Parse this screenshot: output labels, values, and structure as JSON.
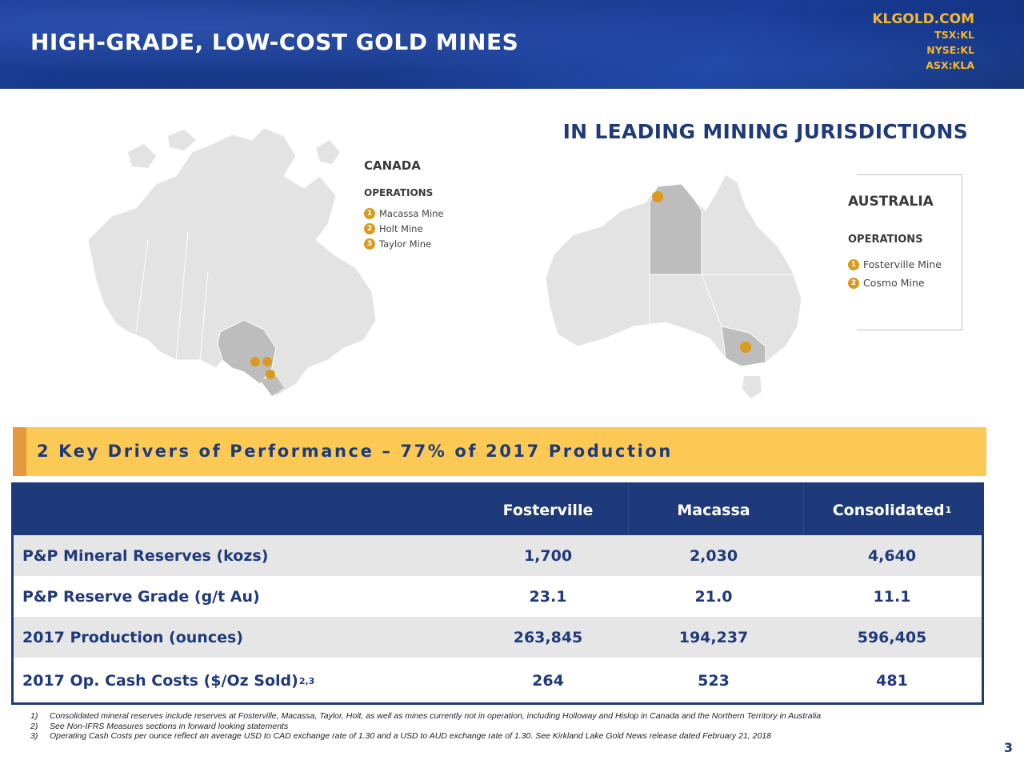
{
  "header": {
    "title": "HIGH-GRADE, LOW-COST GOLD MINES",
    "website": "KLGOLD.COM",
    "tickers": [
      "TSX:KL",
      "NYSE:KL",
      "ASX:KLA"
    ]
  },
  "jurisdictions": {
    "title": "IN LEADING MINING JURISDICTIONS",
    "canada": {
      "country": "CANADA",
      "operations_label": "OPERATIONS",
      "mines": [
        {
          "num": "1",
          "name": "Macassa Mine"
        },
        {
          "num": "2",
          "name": "Holt Mine"
        },
        {
          "num": "3",
          "name": "Taylor Mine"
        }
      ]
    },
    "australia": {
      "country": "AUSTRALIA",
      "operations_label": "OPERATIONS",
      "mines": [
        {
          "num": "1",
          "name": "Fosterville Mine"
        },
        {
          "num": "2",
          "name": "Cosmo Mine"
        }
      ]
    }
  },
  "drivers": {
    "text": "2 Key Drivers of Performance – 77% of 2017 Production"
  },
  "table": {
    "columns": [
      "Fosterville",
      "Macassa",
      "Consolidated"
    ],
    "consolidated_sup": "1",
    "rows": [
      {
        "label": "P&P Mineral Reserves (kozs)",
        "sup": "",
        "values": [
          "1,700",
          "2,030",
          "4,640"
        ]
      },
      {
        "label": "P&P Reserve Grade (g/t Au)",
        "sup": "",
        "values": [
          "23.1",
          "21.0",
          "11.1"
        ]
      },
      {
        "label": "2017 Production (ounces)",
        "sup": "",
        "values": [
          "263,845",
          "194,237",
          "596,405"
        ]
      },
      {
        "label": "2017 Op. Cash Costs ($/Oz Sold)",
        "sup": "2,3",
        "values": [
          "264",
          "523",
          "481"
        ]
      }
    ]
  },
  "footnotes": [
    {
      "num": "1)",
      "text": "Consolidated mineral reserves include reserves at Fosterville, Macassa, Taylor, Holt, as well as mines currently not in operation, including Holloway and Hislop in Canada and the Northern Territory in Australia"
    },
    {
      "num": "2)",
      "text": "See Non-IFRS Measures sections in forward looking statements"
    },
    {
      "num": "3)",
      "text": "Operating Cash Costs per ounce reflect an average USD to CAD exchange rate of 1.30 and a USD to AUD exchange rate of 1.30. See Kirkland Lake Gold News release dated February 21, 2018"
    }
  ],
  "page_number": "3",
  "colors": {
    "navy": "#1f3a7a",
    "gold_bar": "#fcc954",
    "gold_accent": "#e39a3f",
    "gold_text": "#f5b82e",
    "marker": "#d99a1e"
  }
}
